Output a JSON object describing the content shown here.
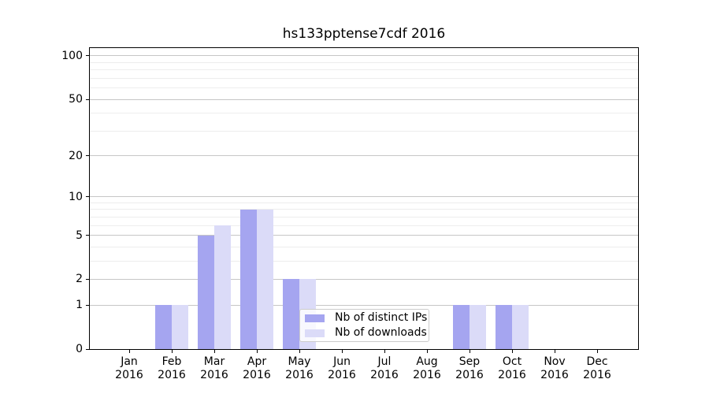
{
  "title": "hs133pptense7cdf 2016",
  "colors": {
    "distinct_ips": "#a5a5f0",
    "downloads": "#dbdbf8",
    "grid_major": "#c6c6c6",
    "grid_minor": "#ededed",
    "axis": "#000000",
    "legend_border": "#cccccc",
    "background": "#ffffff"
  },
  "chart_data": {
    "type": "bar",
    "title": "hs133pptense7cdf 2016",
    "categories": [
      {
        "month": "Jan",
        "year": "2016"
      },
      {
        "month": "Feb",
        "year": "2016"
      },
      {
        "month": "Mar",
        "year": "2016"
      },
      {
        "month": "Apr",
        "year": "2016"
      },
      {
        "month": "May",
        "year": "2016"
      },
      {
        "month": "Jun",
        "year": "2016"
      },
      {
        "month": "Jul",
        "year": "2016"
      },
      {
        "month": "Aug",
        "year": "2016"
      },
      {
        "month": "Sep",
        "year": "2016"
      },
      {
        "month": "Oct",
        "year": "2016"
      },
      {
        "month": "Nov",
        "year": "2016"
      },
      {
        "month": "Dec",
        "year": "2016"
      }
    ],
    "series": [
      {
        "name": "Nb of distinct IPs",
        "color_key": "distinct_ips",
        "values": [
          0,
          1,
          5,
          8,
          2,
          0,
          0,
          0,
          1,
          1,
          0,
          0
        ]
      },
      {
        "name": "Nb of downloads",
        "color_key": "downloads",
        "values": [
          0,
          1,
          6,
          8,
          2,
          0,
          0,
          0,
          1,
          1,
          0,
          0
        ]
      }
    ],
    "xlabel": "",
    "ylabel": "",
    "y_axis": {
      "scale": "log(value+1)",
      "ticks": [
        0,
        1,
        2,
        5,
        10,
        20,
        50,
        100
      ],
      "minor_ticks": [
        3,
        4,
        6,
        7,
        8,
        9,
        30,
        40,
        60,
        70,
        80,
        90
      ],
      "range": [
        0,
        113.3
      ]
    },
    "grid": true,
    "legend_position": "inside-bottom-center"
  }
}
